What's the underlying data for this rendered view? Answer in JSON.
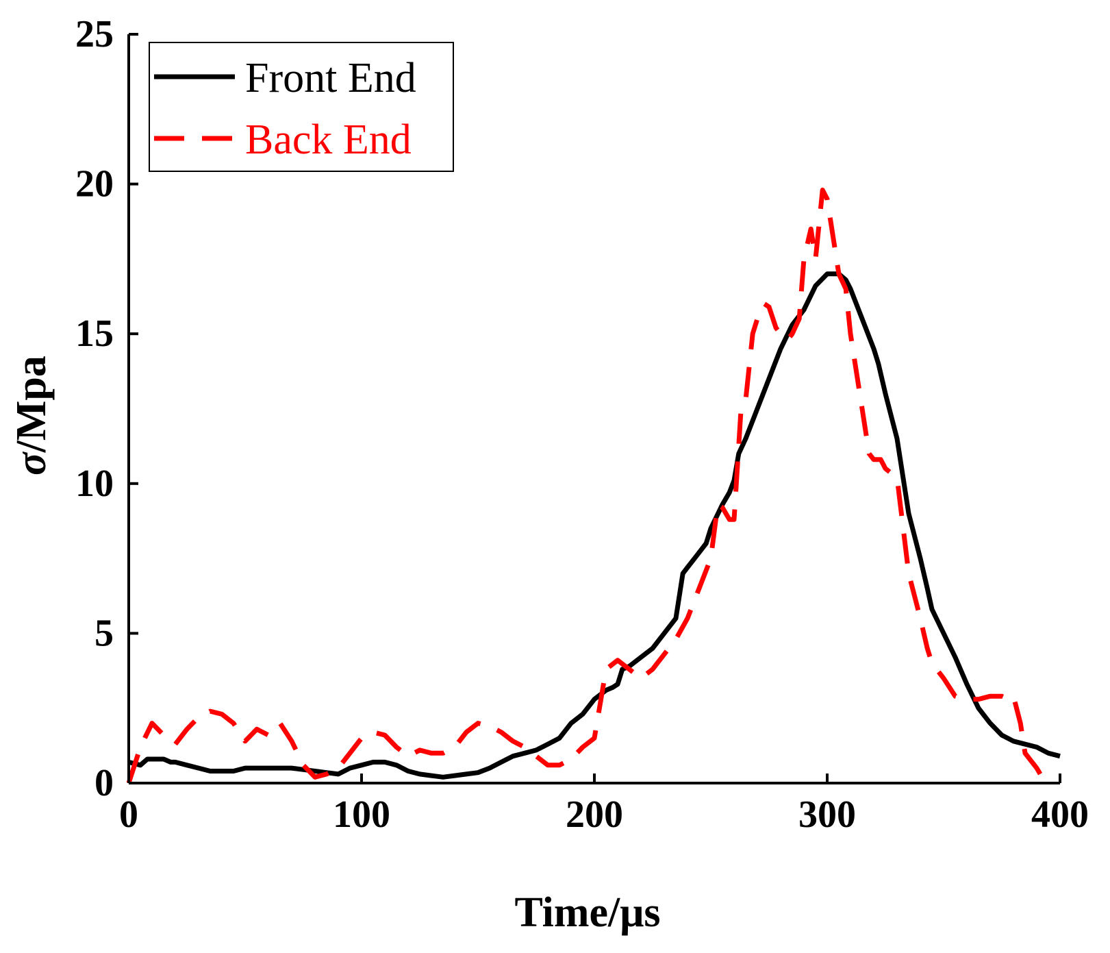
{
  "chart_data": {
    "type": "line",
    "title": "",
    "xlabel": "Time/μs",
    "ylabel_symbol": "σ",
    "ylabel_unit": "/Mpa",
    "xlim": [
      0,
      400
    ],
    "ylim": [
      0,
      25
    ],
    "x_ticks": [
      0,
      100,
      200,
      300,
      400
    ],
    "y_ticks": [
      0,
      5,
      10,
      15,
      20,
      25
    ],
    "x_tick_labels": [
      "0",
      "100",
      "200",
      "300",
      "400"
    ],
    "y_tick_labels": [
      "0",
      "5",
      "10",
      "15",
      "20",
      "25"
    ],
    "grid": false,
    "legend_position": "top-left",
    "series": [
      {
        "name": "Front End",
        "color": "#000000",
        "style": "solid",
        "x": [
          0,
          5,
          8,
          10,
          15,
          18,
          20,
          25,
          30,
          35,
          40,
          45,
          50,
          55,
          60,
          65,
          70,
          75,
          80,
          85,
          90,
          95,
          100,
          105,
          110,
          115,
          120,
          125,
          130,
          135,
          140,
          145,
          150,
          155,
          160,
          165,
          170,
          175,
          180,
          185,
          190,
          195,
          200,
          205,
          208,
          210,
          212,
          215,
          220,
          225,
          230,
          235,
          238,
          240,
          245,
          248,
          250,
          255,
          258,
          260,
          262,
          265,
          270,
          275,
          280,
          285,
          290,
          295,
          300,
          305,
          308,
          310,
          315,
          320,
          322,
          325,
          330,
          332,
          335,
          340,
          343,
          345,
          350,
          355,
          360,
          365,
          370,
          375,
          380,
          385,
          390,
          395,
          400
        ],
        "y": [
          0.7,
          0.6,
          0.8,
          0.8,
          0.8,
          0.7,
          0.7,
          0.6,
          0.5,
          0.4,
          0.4,
          0.4,
          0.5,
          0.5,
          0.5,
          0.5,
          0.5,
          0.45,
          0.4,
          0.35,
          0.3,
          0.5,
          0.6,
          0.7,
          0.7,
          0.6,
          0.4,
          0.3,
          0.25,
          0.2,
          0.25,
          0.3,
          0.35,
          0.5,
          0.7,
          0.9,
          1.0,
          1.1,
          1.3,
          1.5,
          2.0,
          2.3,
          2.8,
          3.1,
          3.2,
          3.3,
          3.8,
          3.9,
          4.2,
          4.5,
          5.0,
          5.5,
          7.0,
          7.2,
          7.7,
          8.0,
          8.5,
          9.3,
          9.7,
          10.1,
          11.0,
          11.5,
          12.5,
          13.5,
          14.5,
          15.3,
          15.8,
          16.6,
          17.0,
          17.0,
          16.8,
          16.5,
          15.5,
          14.5,
          14.0,
          13.0,
          11.5,
          10.5,
          9.0,
          7.5,
          6.5,
          5.8,
          5.0,
          4.2,
          3.3,
          2.5,
          2.0,
          1.6,
          1.4,
          1.3,
          1.2,
          1.0,
          0.9
        ]
      },
      {
        "name": "Back End",
        "color": "#ff0000",
        "style": "dashed",
        "x": [
          0,
          5,
          10,
          15,
          20,
          25,
          30,
          35,
          40,
          45,
          50,
          55,
          60,
          65,
          70,
          75,
          80,
          85,
          90,
          95,
          100,
          105,
          110,
          115,
          120,
          125,
          130,
          135,
          140,
          145,
          150,
          155,
          160,
          165,
          170,
          175,
          180,
          185,
          190,
          195,
          200,
          205,
          210,
          215,
          220,
          225,
          230,
          235,
          240,
          245,
          250,
          253,
          255,
          258,
          260,
          263,
          265,
          268,
          270,
          273,
          275,
          278,
          280,
          283,
          285,
          288,
          290,
          293,
          295,
          298,
          300,
          303,
          305,
          308,
          310,
          313,
          315,
          318,
          320,
          323,
          325,
          330,
          335,
          340,
          343,
          345,
          350,
          355,
          360,
          365,
          370,
          375,
          378,
          380,
          383,
          385,
          390,
          393,
          395
        ],
        "y": [
          0,
          1.2,
          2.0,
          1.6,
          1.3,
          1.8,
          2.2,
          2.4,
          2.3,
          2.0,
          1.4,
          1.8,
          1.6,
          2.0,
          1.4,
          0.6,
          0.2,
          0.3,
          0.5,
          1.0,
          1.5,
          1.7,
          1.6,
          1.2,
          0.9,
          1.1,
          1.0,
          1.0,
          1.2,
          1.7,
          2.0,
          1.9,
          1.7,
          1.4,
          1.2,
          0.9,
          0.6,
          0.6,
          0.8,
          1.2,
          1.5,
          3.8,
          4.1,
          3.8,
          3.5,
          3.8,
          4.3,
          4.8,
          5.5,
          6.5,
          7.5,
          9.3,
          9.2,
          8.8,
          8.8,
          12.5,
          12.8,
          15.0,
          15.5,
          16.0,
          15.9,
          15.2,
          15.0,
          14.8,
          15.0,
          15.5,
          17.5,
          18.5,
          17.5,
          19.8,
          19.5,
          18.0,
          17.0,
          16.5,
          15.0,
          13.5,
          12.5,
          11.0,
          10.8,
          10.8,
          10.5,
          10.2,
          7.0,
          5.5,
          4.5,
          4.0,
          3.5,
          2.9,
          2.8,
          2.8,
          2.9,
          2.9,
          2.8,
          2.9,
          2.0,
          1.0,
          0.5,
          0.1,
          0.0
        ]
      }
    ]
  }
}
